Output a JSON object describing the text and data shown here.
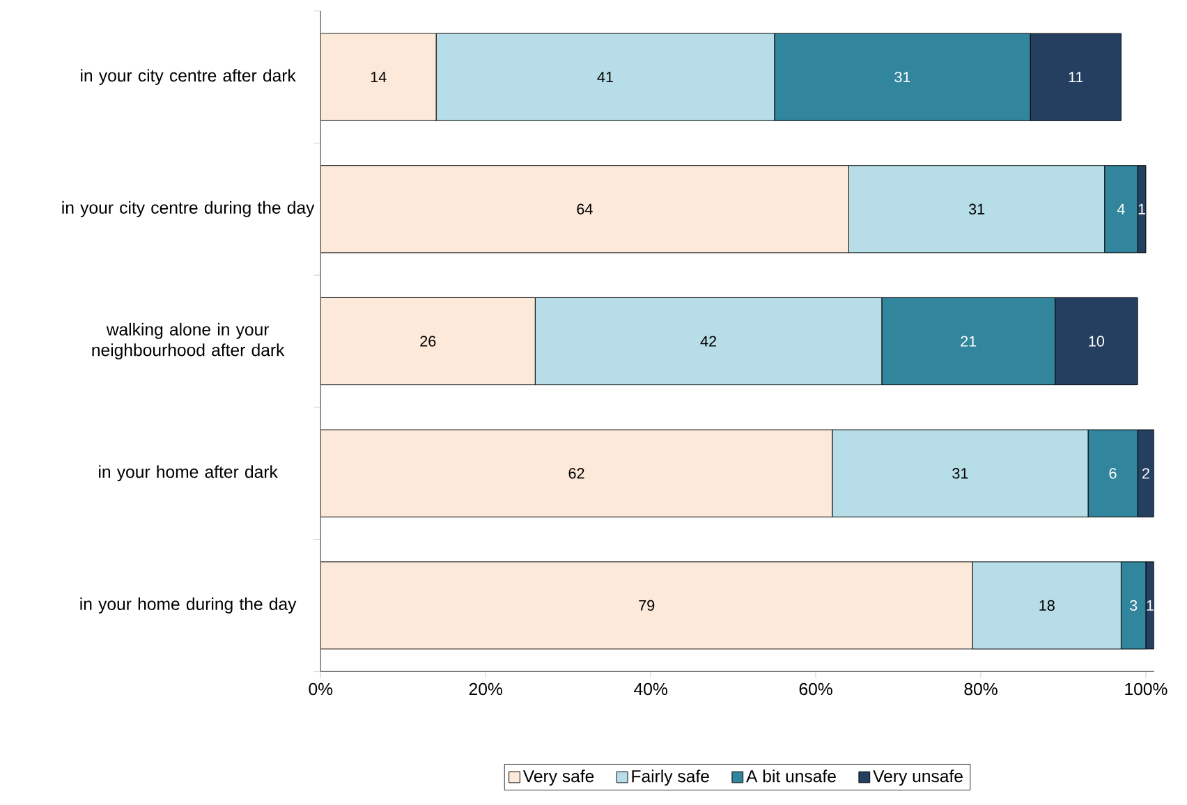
{
  "chart_data": {
    "type": "bar",
    "orientation": "horizontal",
    "stacked": true,
    "grid": false,
    "legend": "bottom",
    "categories": [
      "in your city centre after dark",
      "in your city centre during the day",
      "walking alone in your neighbourhood after dark",
      "in your home after dark",
      "in your home during the day"
    ],
    "series": [
      {
        "name": "Very safe",
        "color": "#fde9d9",
        "values": [
          14,
          64,
          26,
          62,
          79
        ]
      },
      {
        "name": "Fairly safe",
        "color": "#b7dee8",
        "values": [
          41,
          31,
          42,
          31,
          18
        ]
      },
      {
        "name": "A bit unsafe",
        "color": "#31859c",
        "values": [
          31,
          4,
          21,
          6,
          3
        ]
      },
      {
        "name": "Very unsafe",
        "color": "#243f60",
        "values": [
          11,
          1,
          10,
          2,
          1
        ]
      }
    ],
    "data_labels": true,
    "xlim": [
      0,
      101
    ],
    "xticks": [
      {
        "value": 0,
        "label": "0%"
      },
      {
        "value": 20,
        "label": "20%"
      },
      {
        "value": 40,
        "label": "40%"
      },
      {
        "value": 60,
        "label": "60%"
      },
      {
        "value": 80,
        "label": "80%"
      },
      {
        "value": 100,
        "label": "100%"
      }
    ]
  }
}
